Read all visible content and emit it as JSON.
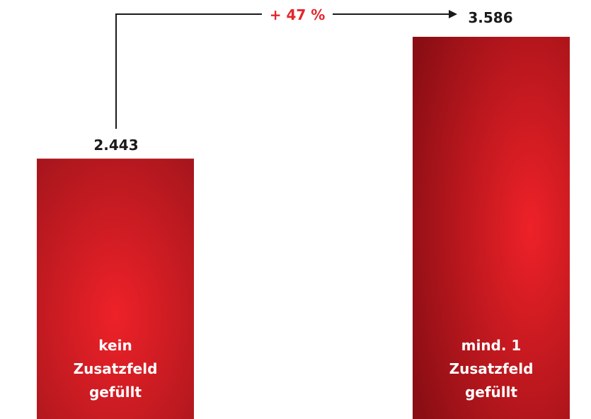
{
  "chart_data": {
    "type": "bar",
    "categories": [
      [
        "kein",
        "Zusatzfeld",
        "gefüllt"
      ],
      [
        "mind. 1",
        "Zusatzfeld",
        "gefüllt"
      ]
    ],
    "values": [
      2443,
      3586
    ],
    "value_labels": [
      "2.443",
      "3.586"
    ],
    "ylim": [
      0,
      3586
    ],
    "grid": false,
    "annotation": {
      "text": "+ 47 %",
      "color": "#e3262c"
    },
    "colors": {
      "bar_center": "#ee2128",
      "bar_edge": "#8a0e14",
      "text": "#1a1a1a",
      "bar_text": "#ffffff"
    }
  }
}
